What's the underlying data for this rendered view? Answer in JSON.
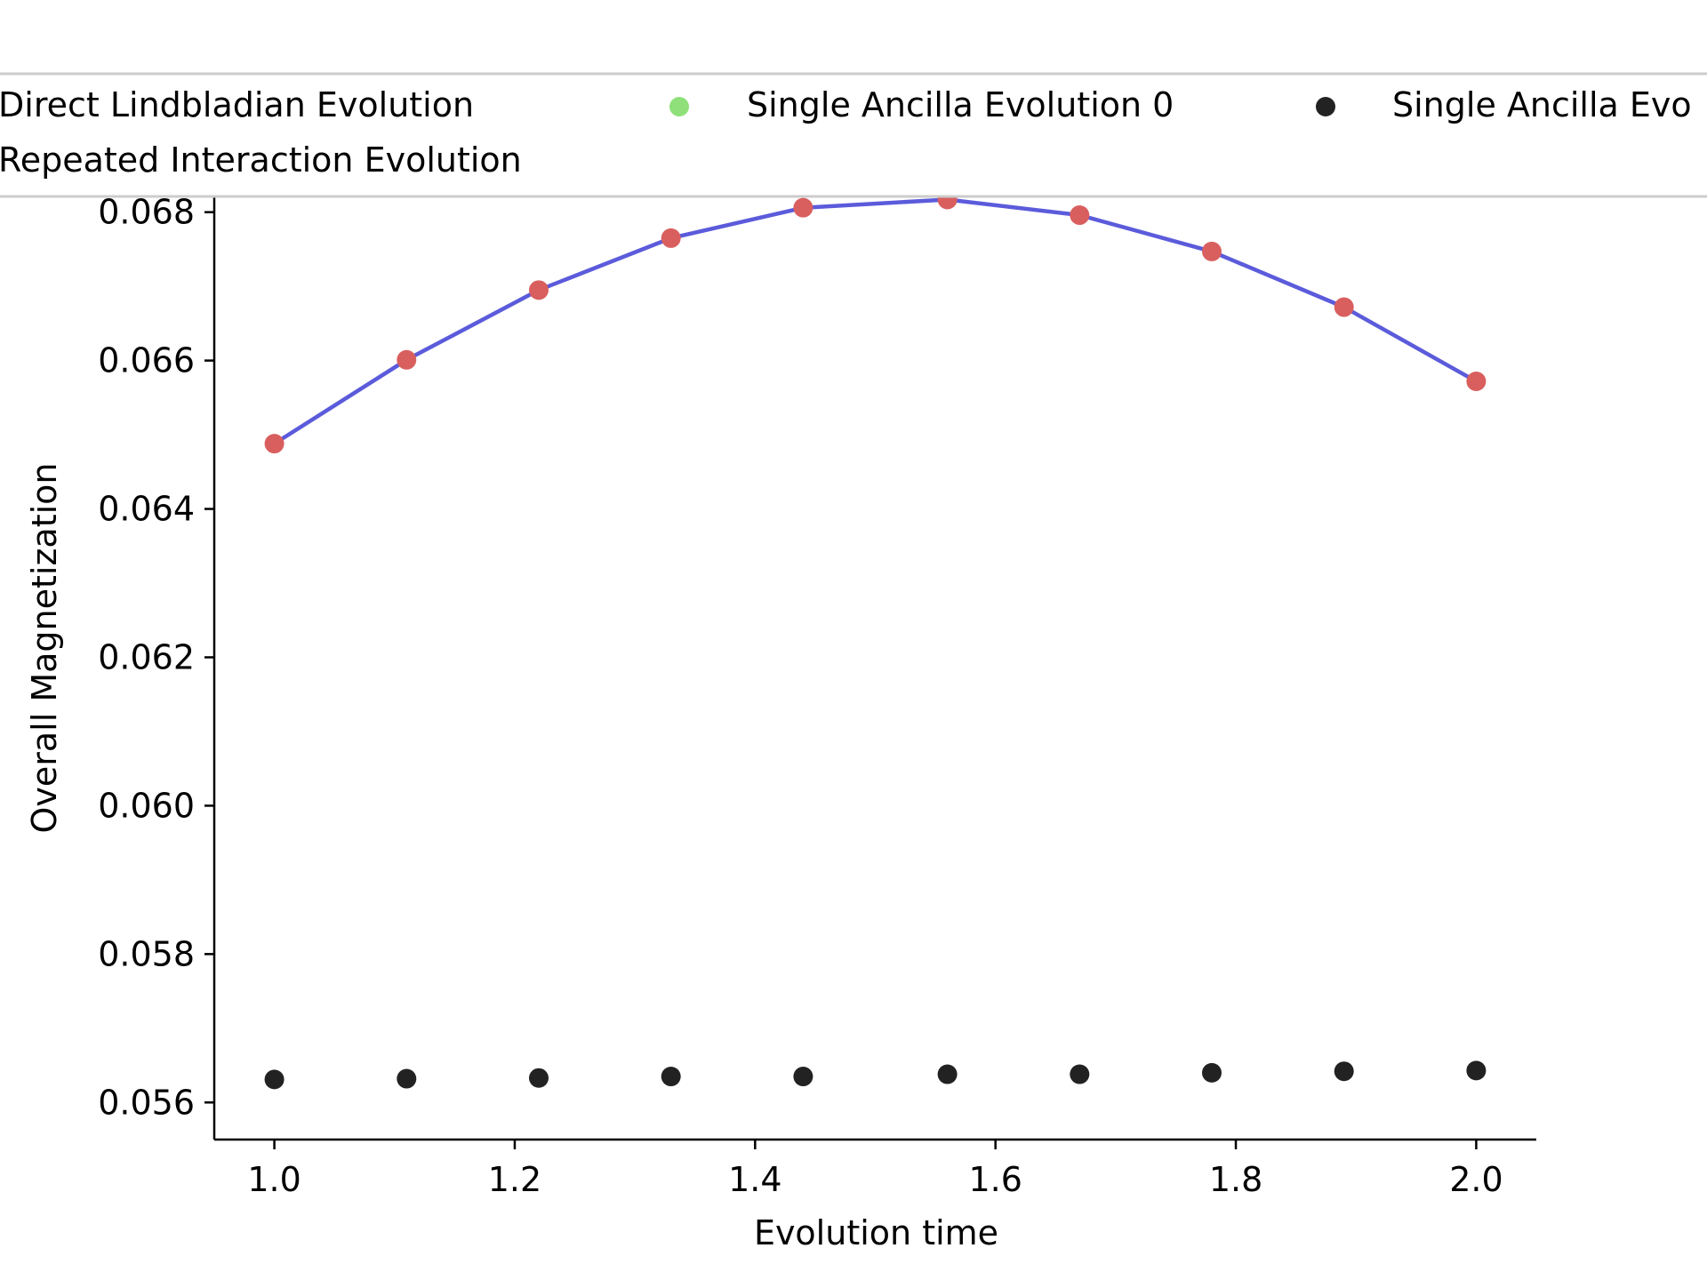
{
  "chart_data": {
    "type": "scatter",
    "xlabel": "Evolution time",
    "ylabel": "Overall Magnetization",
    "xlim": [
      0.95,
      2.05
    ],
    "ylim": [
      0.0555,
      0.0682
    ],
    "xticks": [
      1.0,
      1.2,
      1.4,
      1.6,
      1.8,
      2.0
    ],
    "xtick_labels": [
      "1.0",
      "1.2",
      "1.4",
      "1.6",
      "1.8",
      "2.0"
    ],
    "yticks": [
      0.056,
      0.058,
      0.06,
      0.062,
      0.064,
      0.066,
      0.068
    ],
    "ytick_labels": [
      "0.056",
      "0.058",
      "0.060",
      "0.062",
      "0.064",
      "0.066",
      "0.068"
    ],
    "x": [
      1.0,
      1.11,
      1.22,
      1.33,
      1.44,
      1.56,
      1.67,
      1.78,
      1.89,
      2.0
    ],
    "legend": {
      "placement": "top",
      "entries": [
        "Direct Lindbladian Evolution",
        "Single Ancilla Evolution 0",
        "Single Ancilla Evo",
        "Repeated Interaction Evolution"
      ]
    },
    "series": [
      {
        "name": "Direct Lindbladian Evolution",
        "style": "line",
        "color": "#5b5bdb",
        "values": [
          0.06488,
          0.06601,
          0.06695,
          0.06765,
          0.06806,
          0.06817,
          0.06796,
          0.06747,
          0.06672,
          0.06572
        ]
      },
      {
        "name": "Single Ancilla Evolution 0",
        "style": "scatter",
        "color": "#8fe07a",
        "values": []
      },
      {
        "name": "Single Ancilla Evo",
        "style": "scatter",
        "color": "#222222",
        "values": [
          0.05631,
          0.05632,
          0.05633,
          0.05635,
          0.05635,
          0.05638,
          0.05638,
          0.0564,
          0.05642,
          0.05643
        ]
      },
      {
        "name": "Repeated Interaction Evolution",
        "style": "scatter",
        "color": "#d95f5f",
        "values": [
          0.06488,
          0.06601,
          0.06695,
          0.06765,
          0.06806,
          0.06817,
          0.06796,
          0.06747,
          0.06672,
          0.06572
        ]
      }
    ]
  }
}
